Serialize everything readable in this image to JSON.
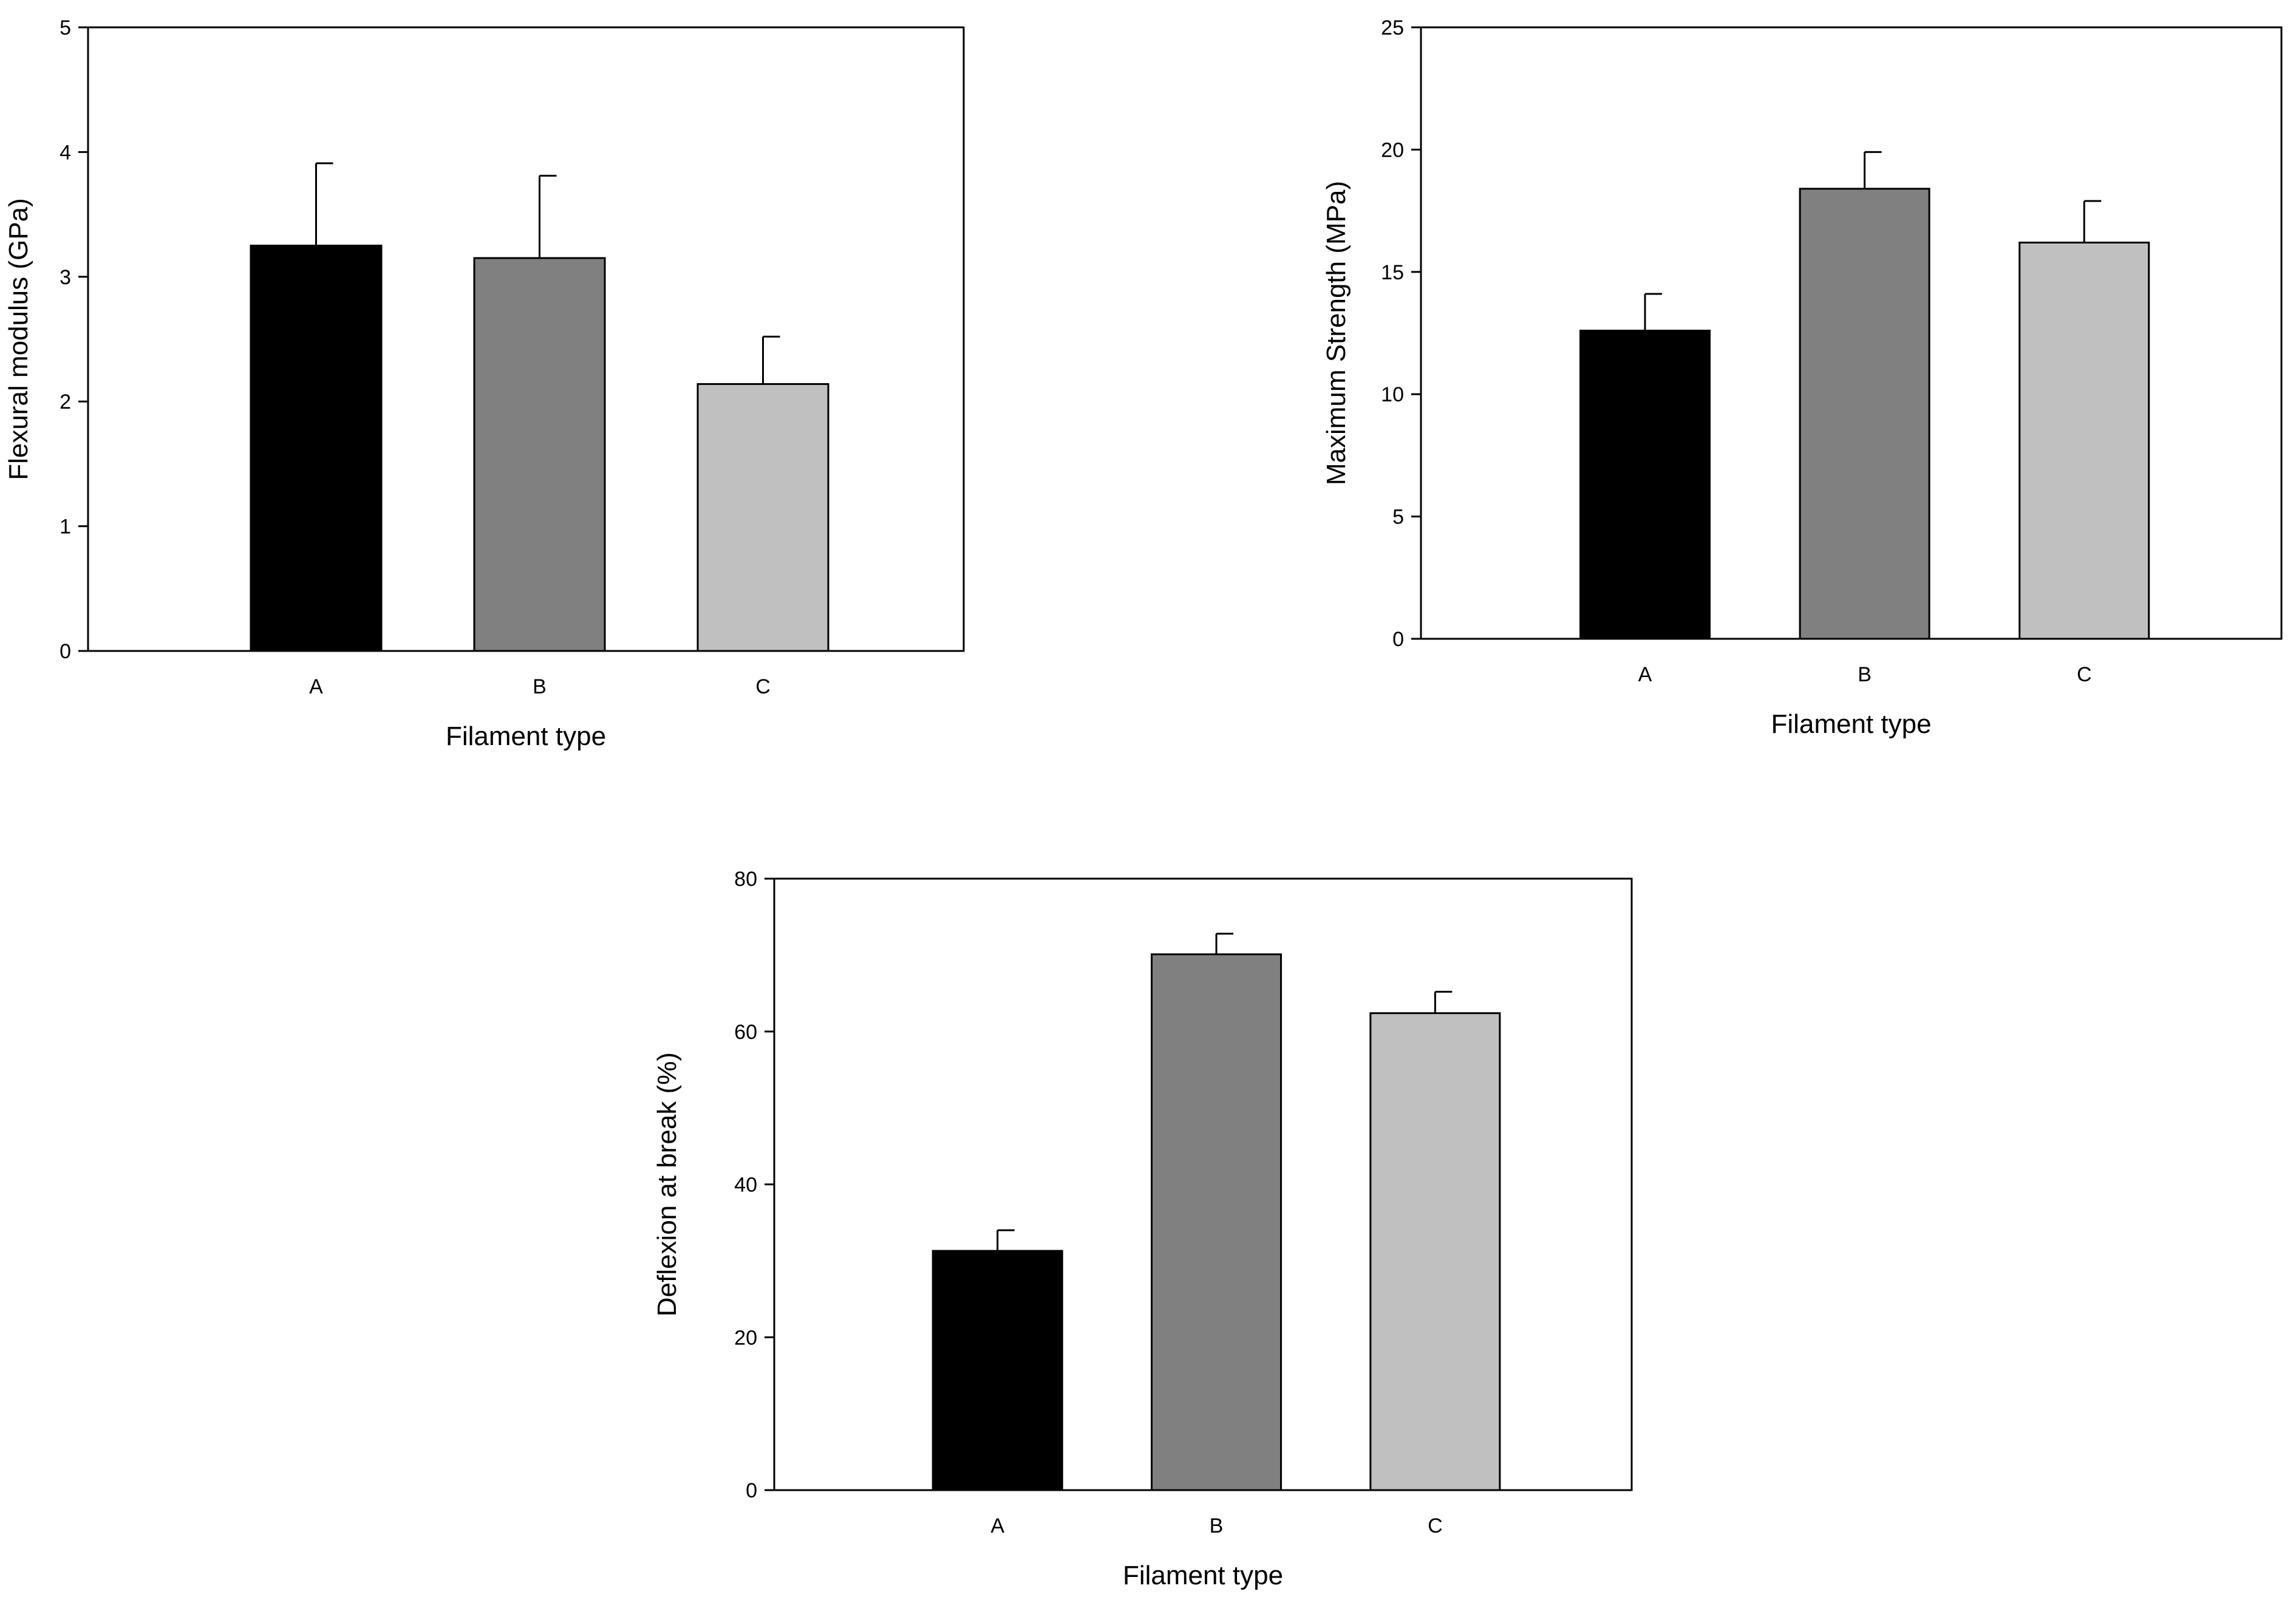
{
  "chart_data": [
    {
      "type": "bar",
      "categories": [
        "A",
        "B",
        "C"
      ],
      "values": [
        3.25,
        3.15,
        2.14
      ],
      "errors": [
        0.66,
        0.66,
        0.38
      ],
      "colors": [
        "#000000",
        "#808080",
        "#c0c0c0"
      ],
      "ylim": [
        0,
        5
      ],
      "yticks": [
        "0",
        "1",
        "2",
        "3",
        "4",
        "5"
      ],
      "xlabel": "Filament type",
      "ylabel": "Flexural modulus (GPa)",
      "grid": false,
      "legend": "none"
    },
    {
      "type": "bar",
      "categories": [
        "A",
        "B",
        "C"
      ],
      "values": [
        12.6,
        18.4,
        16.2
      ],
      "errors": [
        1.5,
        1.5,
        1.7
      ],
      "colors": [
        "#000000",
        "#808080",
        "#c0c0c0"
      ],
      "ylim": [
        0,
        25
      ],
      "yticks": [
        "0",
        "5",
        "10",
        "15",
        "20",
        "25"
      ],
      "xlabel": "Filament type",
      "ylabel": "Maximum Strength (MPa)",
      "grid": false,
      "legend": "none"
    },
    {
      "type": "bar",
      "categories": [
        "A",
        "B",
        "C"
      ],
      "values": [
        31.3,
        70.1,
        62.4
      ],
      "errors": [
        2.7,
        2.7,
        2.8
      ],
      "colors": [
        "#000000",
        "#808080",
        "#c0c0c0"
      ],
      "ylim": [
        0,
        80
      ],
      "yticks": [
        "0",
        "20",
        "40",
        "60",
        "80"
      ],
      "xlabel": "Filament type",
      "ylabel": "Deflexion at break (%)",
      "grid": false,
      "legend": "none"
    }
  ]
}
